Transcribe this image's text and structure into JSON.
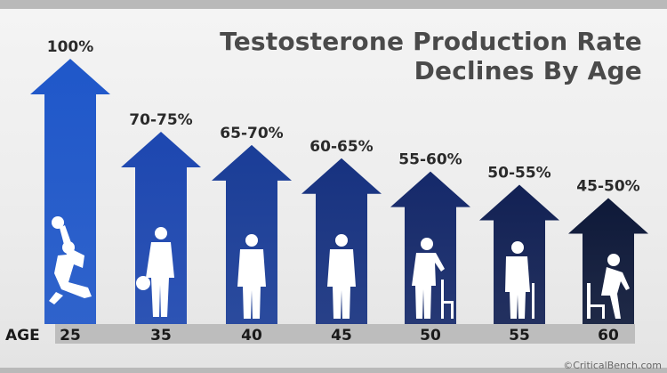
{
  "title_line1": "Testosterone Production Rate",
  "title_line2": "Declines By Age",
  "age_axis_label": "AGE",
  "watermark": "©CriticalBench.com",
  "chart_data": {
    "type": "bar",
    "categories": [
      "25",
      "35",
      "40",
      "45",
      "50",
      "55",
      "60"
    ],
    "value_labels": [
      "100%",
      "70-75%",
      "65-70%",
      "60-65%",
      "55-60%",
      "50-55%",
      "45-50%"
    ],
    "values": [
      100,
      72.5,
      67.5,
      62.5,
      57.5,
      52.5,
      47.5
    ],
    "title": "Testosterone Production Rate Declines By Age",
    "xlabel": "AGE",
    "ylabel": "",
    "ylim": [
      0,
      100
    ],
    "colors": [
      "#1f57c9",
      "#1d47b0",
      "#1a3d97",
      "#173280",
      "#15296a",
      "#122154",
      "#0e1939"
    ],
    "silhouettes": [
      "basketball-dunk-figure",
      "basketball-player-figure",
      "standing-man-figure",
      "standing-man-figure",
      "man-with-chair-figure",
      "elderly-man-with-cane-figure",
      "elderly-man-sitting-figure"
    ]
  }
}
